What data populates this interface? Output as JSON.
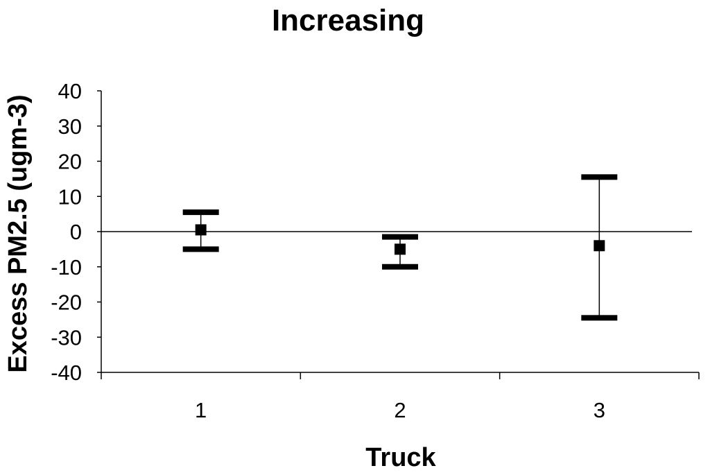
{
  "chart_data": {
    "type": "scatter",
    "title": "Increasing",
    "xlabel": "Truck",
    "ylabel": "Excess PM2.5 (ugm-3)",
    "categories": [
      "1",
      "2",
      "3"
    ],
    "ylim": [
      -40,
      40
    ],
    "yticks": [
      40,
      30,
      20,
      10,
      0,
      -10,
      -20,
      -30,
      -40
    ],
    "grid": false,
    "legend": "none",
    "zero_line": true,
    "points": [
      {
        "x": "1",
        "y": 0.5,
        "lower": -5,
        "upper": 5.5
      },
      {
        "x": "2",
        "y": -5,
        "lower": -10,
        "upper": -1.5
      },
      {
        "x": "3",
        "y": -4,
        "lower": -24.5,
        "upper": 15.5
      }
    ],
    "colors": {
      "marker": "#000000",
      "axis": "#000000",
      "background": "#ffffff"
    }
  }
}
